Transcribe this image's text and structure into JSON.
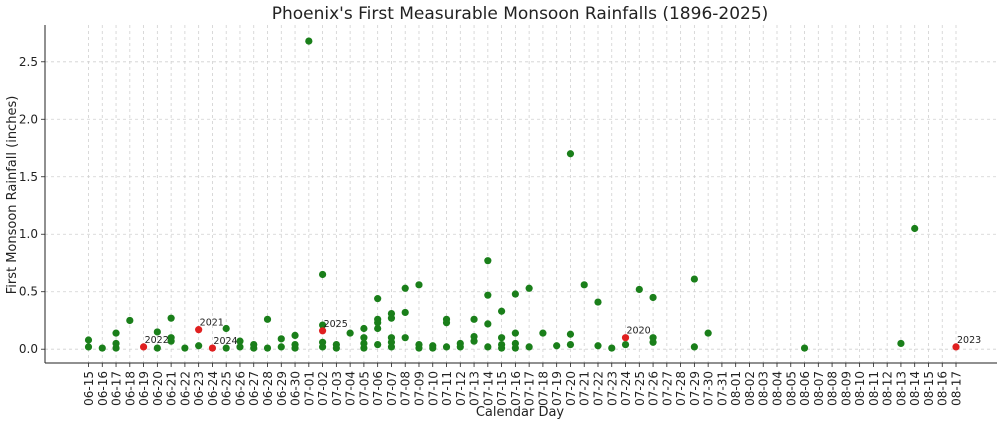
{
  "chart_data": {
    "type": "scatter",
    "title": "Phoenix's First Measurable Monsoon Rainfalls (1896-2025)",
    "xlabel": "Calendar Day",
    "ylabel": "First Monsoon Rainfall (inches)",
    "ylim": [
      -0.12,
      2.82
    ],
    "yticks": [
      0.0,
      0.5,
      1.0,
      1.5,
      2.0,
      2.5
    ],
    "ytick_labels": [
      "0.0",
      "0.5",
      "1.0",
      "1.5",
      "2.0",
      "2.5"
    ],
    "grid": true,
    "categories": [
      "06-15",
      "06-16",
      "06-17",
      "06-18",
      "06-19",
      "06-20",
      "06-21",
      "06-22",
      "06-23",
      "06-24",
      "06-25",
      "06-26",
      "06-27",
      "06-28",
      "06-29",
      "06-30",
      "07-01",
      "07-02",
      "07-03",
      "07-04",
      "07-05",
      "07-06",
      "07-07",
      "07-08",
      "07-09",
      "07-10",
      "07-11",
      "07-12",
      "07-13",
      "07-14",
      "07-15",
      "07-16",
      "07-17",
      "07-18",
      "07-19",
      "07-20",
      "07-21",
      "07-22",
      "07-23",
      "07-24",
      "07-25",
      "07-26",
      "07-27",
      "07-28",
      "07-29",
      "07-30",
      "07-31",
      "08-01",
      "08-02",
      "08-03",
      "08-04",
      "08-05",
      "08-06",
      "08-07",
      "08-08",
      "08-09",
      "08-10",
      "08-11",
      "08-12",
      "08-13",
      "08-14",
      "08-15",
      "08-16",
      "08-17"
    ],
    "colors": {
      "historical": "#1a7f1a",
      "recent": "#e02020",
      "grid": "#d0d0d0",
      "axis": "#222222"
    },
    "series": [
      {
        "group": "historical",
        "points": [
          [
            "06-15",
            0.08
          ],
          [
            "06-15",
            0.02
          ],
          [
            "06-16",
            0.01
          ],
          [
            "06-17",
            0.14
          ],
          [
            "06-17",
            0.05
          ],
          [
            "06-17",
            0.01
          ],
          [
            "06-18",
            0.25
          ],
          [
            "06-20",
            0.15
          ],
          [
            "06-20",
            0.01
          ],
          [
            "06-21",
            0.27
          ],
          [
            "06-21",
            0.1
          ],
          [
            "06-21",
            0.07
          ],
          [
            "06-22",
            0.01
          ],
          [
            "06-23",
            0.03
          ],
          [
            "06-25",
            0.18
          ],
          [
            "06-25",
            0.01
          ],
          [
            "06-26",
            0.07
          ],
          [
            "06-26",
            0.02
          ],
          [
            "06-27",
            0.04
          ],
          [
            "06-27",
            0.01
          ],
          [
            "06-28",
            0.26
          ],
          [
            "06-28",
            0.01
          ],
          [
            "06-29",
            0.09
          ],
          [
            "06-29",
            0.02
          ],
          [
            "06-30",
            0.12
          ],
          [
            "06-30",
            0.04
          ],
          [
            "06-30",
            0.01
          ],
          [
            "07-01",
            2.68
          ],
          [
            "07-02",
            0.65
          ],
          [
            "07-02",
            0.21
          ],
          [
            "07-02",
            0.06
          ],
          [
            "07-02",
            0.02
          ],
          [
            "07-03",
            0.04
          ],
          [
            "07-03",
            0.01
          ],
          [
            "07-04",
            0.14
          ],
          [
            "07-05",
            0.18
          ],
          [
            "07-05",
            0.1
          ],
          [
            "07-05",
            0.05
          ],
          [
            "07-05",
            0.01
          ],
          [
            "07-06",
            0.44
          ],
          [
            "07-06",
            0.26
          ],
          [
            "07-06",
            0.23
          ],
          [
            "07-06",
            0.18
          ],
          [
            "07-06",
            0.04
          ],
          [
            "07-07",
            0.31
          ],
          [
            "07-07",
            0.27
          ],
          [
            "07-07",
            0.1
          ],
          [
            "07-07",
            0.06
          ],
          [
            "07-07",
            0.02
          ],
          [
            "07-08",
            0.53
          ],
          [
            "07-08",
            0.32
          ],
          [
            "07-08",
            0.1
          ],
          [
            "07-09",
            0.56
          ],
          [
            "07-09",
            0.04
          ],
          [
            "07-09",
            0.01
          ],
          [
            "07-10",
            0.03
          ],
          [
            "07-10",
            0.01
          ],
          [
            "07-11",
            0.26
          ],
          [
            "07-11",
            0.23
          ],
          [
            "07-11",
            0.02
          ],
          [
            "07-12",
            0.05
          ],
          [
            "07-12",
            0.02
          ],
          [
            "07-13",
            0.26
          ],
          [
            "07-13",
            0.11
          ],
          [
            "07-13",
            0.07
          ],
          [
            "07-14",
            0.77
          ],
          [
            "07-14",
            0.47
          ],
          [
            "07-14",
            0.22
          ],
          [
            "07-14",
            0.02
          ],
          [
            "07-15",
            0.33
          ],
          [
            "07-15",
            0.1
          ],
          [
            "07-15",
            0.04
          ],
          [
            "07-15",
            0.01
          ],
          [
            "07-16",
            0.48
          ],
          [
            "07-16",
            0.14
          ],
          [
            "07-16",
            0.05
          ],
          [
            "07-16",
            0.01
          ],
          [
            "07-17",
            0.53
          ],
          [
            "07-17",
            0.02
          ],
          [
            "07-18",
            0.14
          ],
          [
            "07-19",
            0.03
          ],
          [
            "07-20",
            1.7
          ],
          [
            "07-20",
            0.13
          ],
          [
            "07-20",
            0.04
          ],
          [
            "07-21",
            0.56
          ],
          [
            "07-22",
            0.41
          ],
          [
            "07-22",
            0.03
          ],
          [
            "07-23",
            0.01
          ],
          [
            "07-24",
            0.04
          ],
          [
            "07-25",
            0.52
          ],
          [
            "07-26",
            0.45
          ],
          [
            "07-26",
            0.1
          ],
          [
            "07-26",
            0.06
          ],
          [
            "07-29",
            0.61
          ],
          [
            "07-29",
            0.02
          ],
          [
            "07-30",
            0.14
          ],
          [
            "08-06",
            0.01
          ],
          [
            "08-13",
            0.05
          ],
          [
            "08-14",
            1.05
          ]
        ]
      },
      {
        "group": "recent",
        "points": [
          [
            "06-19",
            0.02,
            "2022"
          ],
          [
            "06-23",
            0.17,
            "2021"
          ],
          [
            "06-24",
            0.01,
            "2024"
          ],
          [
            "07-02",
            0.16,
            "2025"
          ],
          [
            "07-24",
            0.1,
            "2020"
          ],
          [
            "08-17",
            0.02,
            "2023"
          ]
        ]
      }
    ]
  }
}
